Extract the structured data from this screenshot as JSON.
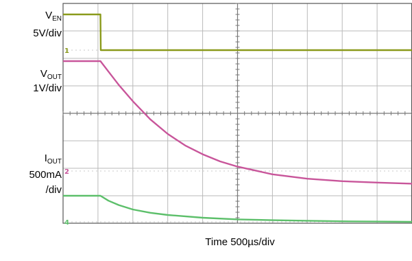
{
  "chart_data": {
    "type": "line",
    "xlabel": "Time 500µs/div",
    "x_unit": "div",
    "xlim": [
      0,
      10
    ],
    "y_unit": "div",
    "ylim": [
      -4,
      4
    ],
    "grid": true,
    "channel_labels": [
      {
        "id": "ven",
        "name": "V",
        "sub": "EN",
        "scale": "5V/div"
      },
      {
        "id": "vout",
        "name": "V",
        "sub": "OUT",
        "scale": "1V/div"
      },
      {
        "id": "iout",
        "name": "I",
        "sub": "OUT",
        "scale_line1": "500mA",
        "scale_line2": "/div"
      }
    ],
    "series": [
      {
        "id": "ven",
        "color": "#8a9a1a",
        "x": [
          0.0,
          0.5,
          1.0,
          1.07,
          1.08,
          2.0,
          4.0,
          6.0,
          8.0,
          10.0
        ],
        "y": [
          3.6,
          3.6,
          3.6,
          3.6,
          2.3,
          2.3,
          2.3,
          2.3,
          2.3,
          2.3
        ]
      },
      {
        "id": "vout",
        "color": "#c8559a",
        "x": [
          0.0,
          0.5,
          1.0,
          1.07,
          1.3,
          1.6,
          2.0,
          2.5,
          3.0,
          3.5,
          4.0,
          4.5,
          5.0,
          6.0,
          7.0,
          8.0,
          9.0,
          10.0
        ],
        "y": [
          1.9,
          1.9,
          1.9,
          1.9,
          1.52,
          1.03,
          0.44,
          -0.22,
          -0.75,
          -1.17,
          -1.49,
          -1.75,
          -1.94,
          -2.22,
          -2.38,
          -2.47,
          -2.52,
          -2.56
        ]
      },
      {
        "id": "iout",
        "color": "#5cbf6a",
        "x": [
          0.0,
          0.5,
          1.0,
          1.07,
          1.3,
          1.6,
          2.0,
          2.5,
          3.0,
          4.0,
          5.0,
          6.0,
          7.0,
          8.0,
          9.0,
          10.0
        ],
        "y": [
          -3.0,
          -3.0,
          -3.0,
          -3.0,
          -3.18,
          -3.34,
          -3.5,
          -3.62,
          -3.7,
          -3.8,
          -3.86,
          -3.89,
          -3.91,
          -3.93,
          -3.94,
          -3.95
        ]
      }
    ],
    "ground_markers": [
      {
        "series": "ven",
        "text": "1",
        "y": 2.3
      },
      {
        "series": "vout",
        "text": "2",
        "y": -2.1
      },
      {
        "series": "iout",
        "text": "4",
        "y": -3.95
      }
    ]
  }
}
